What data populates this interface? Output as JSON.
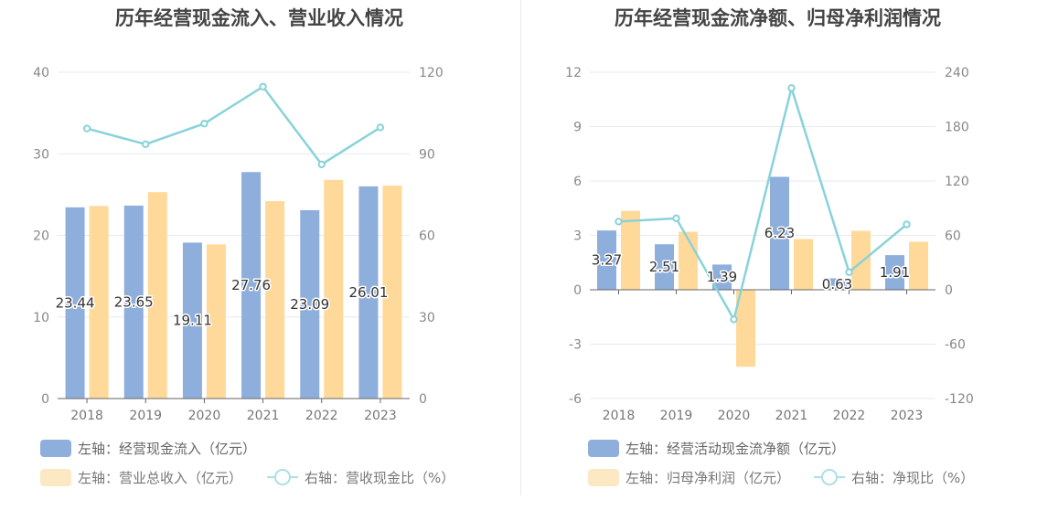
{
  "colors": {
    "bar_primary": "#8eaedc",
    "bar_secondary": "#ffd99a",
    "line": "#88d3d9",
    "legend_secondary_swatch": "#fde8c4",
    "legend_line": "#abdfe4"
  },
  "left": {
    "title": "历年经营现金流入、营业收入情况",
    "legend": {
      "bar1": "左轴：经营现金流入（亿元）",
      "bar2": "左轴：营业总收入（亿元）",
      "line": "右轴：营收现金比（%）"
    }
  },
  "right": {
    "title": "历年经营现金流净额、归母净利润情况",
    "legend": {
      "bar1": "左轴：经营活动现金流净额（亿元）",
      "bar2": "左轴：归母净利润（亿元）",
      "line": "右轴：净现比（%）"
    }
  },
  "chart_data": [
    {
      "type": "bar",
      "title": "历年经营现金流入、营业收入情况",
      "categories": [
        "2018",
        "2019",
        "2020",
        "2021",
        "2022",
        "2023"
      ],
      "y_left": {
        "min": 0,
        "max": 40,
        "ticks": [
          "0",
          "10",
          "20",
          "30",
          "40"
        ]
      },
      "y_right": {
        "min": 0,
        "max": 120,
        "ticks": [
          "0",
          "30",
          "60",
          "90",
          "120"
        ]
      },
      "series": [
        {
          "name": "左轴：经营现金流入（亿元）",
          "axis": "left",
          "type": "bar",
          "values": [
            23.44,
            23.65,
            19.11,
            27.76,
            23.09,
            26.01
          ],
          "labels": [
            "23.44",
            "23.65",
            "19.11",
            "27.76",
            "23.09",
            "26.01"
          ]
        },
        {
          "name": "左轴：营业总收入（亿元）",
          "axis": "left",
          "type": "bar",
          "values": [
            23.6,
            25.3,
            18.9,
            24.2,
            26.8,
            26.1
          ]
        },
        {
          "name": "右轴：营收现金比（%）",
          "axis": "right",
          "type": "line",
          "values": [
            99.3,
            93.5,
            101.1,
            114.7,
            86.1,
            99.7
          ]
        }
      ],
      "grid": true
    },
    {
      "type": "bar",
      "title": "历年经营现金流净额、归母净利润情况",
      "categories": [
        "2018",
        "2019",
        "2020",
        "2021",
        "2022",
        "2023"
      ],
      "y_left": {
        "min": -6,
        "max": 12,
        "ticks": [
          "-6",
          "-3",
          "0",
          "3",
          "6",
          "9",
          "12"
        ]
      },
      "y_right": {
        "min": -120,
        "max": 240,
        "ticks": [
          "-120",
          "-60",
          "0",
          "60",
          "120",
          "180",
          "240"
        ]
      },
      "series": [
        {
          "name": "左轴：经营活动现金流净额（亿元）",
          "axis": "left",
          "type": "bar",
          "values": [
            3.27,
            2.51,
            1.39,
            6.23,
            0.63,
            1.91
          ],
          "labels": [
            "3.27",
            "2.51",
            "1.39",
            "6.23",
            "0.63",
            "1.91"
          ]
        },
        {
          "name": "左轴：归母净利润（亿元）",
          "axis": "left",
          "type": "bar",
          "values": [
            4.35,
            3.2,
            -4.25,
            2.8,
            3.25,
            2.65
          ]
        },
        {
          "name": "右轴：净现比（%）",
          "axis": "right",
          "type": "line",
          "values": [
            75.2,
            78.8,
            -32.7,
            222.5,
            19.4,
            72.1
          ]
        }
      ],
      "grid": true
    }
  ]
}
